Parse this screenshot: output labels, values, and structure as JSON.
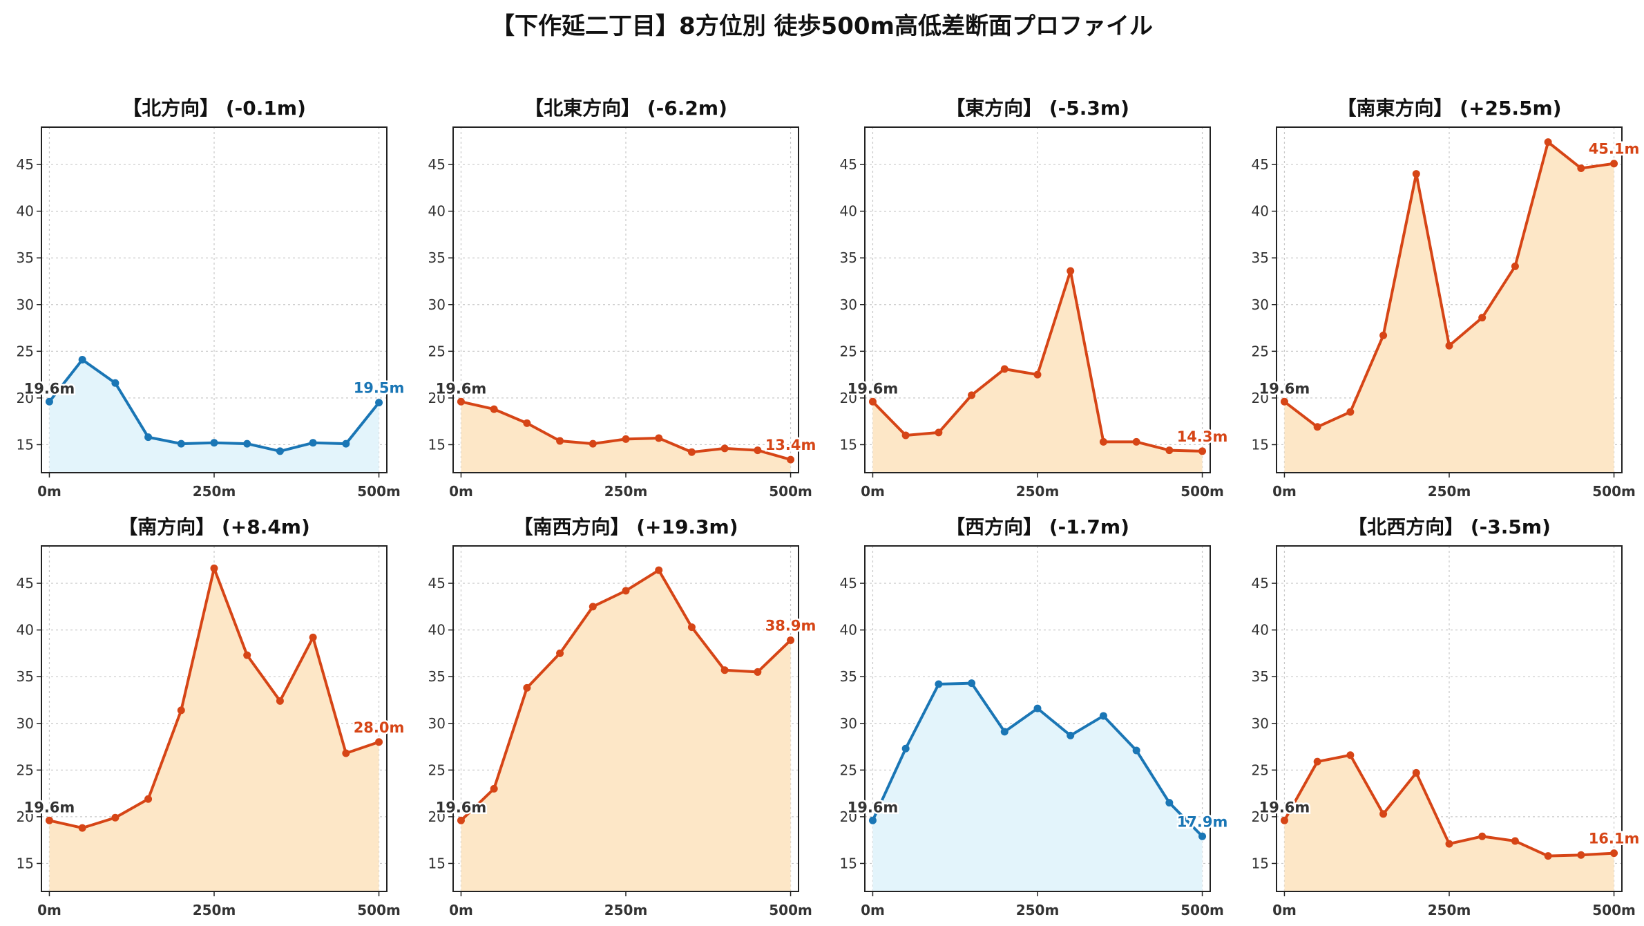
{
  "title": "【下作延二丁目】8方位別 徒歩500m高低差断面プロファイル",
  "colors": {
    "down": "#1a76b5",
    "down_fill": "#e3f4fb",
    "up": "#d64516",
    "up_fill": "#fde7c7",
    "grid": "#c8c8c8",
    "frame": "#222222"
  },
  "chart_data": [
    {
      "type": "area",
      "title": "【北方向】 (-0.1m)",
      "trend": "down",
      "x": [
        0,
        50,
        100,
        150,
        200,
        250,
        300,
        350,
        400,
        450,
        500
      ],
      "y": [
        19.6,
        24.1,
        21.6,
        15.8,
        15.1,
        15.2,
        15.1,
        14.3,
        15.2,
        15.1,
        19.5
      ],
      "start_label": "19.6m",
      "end_label": "19.5m",
      "xticks": [
        0,
        250,
        500
      ],
      "xtick_labels": [
        "0m",
        "250m",
        "500m"
      ],
      "yticks": [
        15,
        20,
        25,
        30,
        35,
        40,
        45
      ],
      "ylim": [
        12,
        49
      ],
      "xlim": [
        -12,
        512
      ],
      "grid": true
    },
    {
      "type": "area",
      "title": "【北東方向】 (-6.2m)",
      "trend": "up",
      "x": [
        0,
        50,
        100,
        150,
        200,
        250,
        300,
        350,
        400,
        450,
        500
      ],
      "y": [
        19.6,
        18.8,
        17.3,
        15.4,
        15.1,
        15.6,
        15.7,
        14.2,
        14.6,
        14.4,
        13.4
      ],
      "start_label": "19.6m",
      "end_label": "13.4m",
      "xticks": [
        0,
        250,
        500
      ],
      "xtick_labels": [
        "0m",
        "250m",
        "500m"
      ],
      "yticks": [
        15,
        20,
        25,
        30,
        35,
        40,
        45
      ],
      "ylim": [
        12,
        49
      ],
      "xlim": [
        -12,
        512
      ],
      "grid": true
    },
    {
      "type": "area",
      "title": "【東方向】 (-5.3m)",
      "trend": "up",
      "x": [
        0,
        50,
        100,
        150,
        200,
        250,
        300,
        350,
        400,
        450,
        500
      ],
      "y": [
        19.6,
        16.0,
        16.3,
        20.3,
        23.1,
        22.5,
        33.6,
        15.3,
        15.3,
        14.4,
        14.3
      ],
      "start_label": "19.6m",
      "end_label": "14.3m",
      "xticks": [
        0,
        250,
        500
      ],
      "xtick_labels": [
        "0m",
        "250m",
        "500m"
      ],
      "yticks": [
        15,
        20,
        25,
        30,
        35,
        40,
        45
      ],
      "ylim": [
        12,
        49
      ],
      "xlim": [
        -12,
        512
      ],
      "grid": true
    },
    {
      "type": "area",
      "title": "【南東方向】 (+25.5m)",
      "trend": "up",
      "x": [
        0,
        50,
        100,
        150,
        200,
        250,
        300,
        350,
        400,
        450,
        500
      ],
      "y": [
        19.6,
        16.9,
        18.5,
        26.7,
        44.0,
        25.6,
        28.6,
        34.1,
        47.4,
        44.6,
        45.1
      ],
      "start_label": "19.6m",
      "end_label": "45.1m",
      "xticks": [
        0,
        250,
        500
      ],
      "xtick_labels": [
        "0m",
        "250m",
        "500m"
      ],
      "yticks": [
        15,
        20,
        25,
        30,
        35,
        40,
        45
      ],
      "ylim": [
        12,
        49
      ],
      "xlim": [
        -12,
        512
      ],
      "grid": true
    },
    {
      "type": "area",
      "title": "【南方向】 (+8.4m)",
      "trend": "up",
      "x": [
        0,
        50,
        100,
        150,
        200,
        250,
        300,
        350,
        400,
        450,
        500
      ],
      "y": [
        19.6,
        18.8,
        19.9,
        21.9,
        31.4,
        46.6,
        37.3,
        32.4,
        39.2,
        26.8,
        28.0
      ],
      "start_label": "19.6m",
      "end_label": "28.0m",
      "xticks": [
        0,
        250,
        500
      ],
      "xtick_labels": [
        "0m",
        "250m",
        "500m"
      ],
      "yticks": [
        15,
        20,
        25,
        30,
        35,
        40,
        45
      ],
      "ylim": [
        12,
        49
      ],
      "xlim": [
        -12,
        512
      ],
      "grid": true
    },
    {
      "type": "area",
      "title": "【南西方向】 (+19.3m)",
      "trend": "up",
      "x": [
        0,
        50,
        100,
        150,
        200,
        250,
        300,
        350,
        400,
        450,
        500
      ],
      "y": [
        19.6,
        23.0,
        33.8,
        37.5,
        42.5,
        44.2,
        46.4,
        40.3,
        35.7,
        35.5,
        38.9
      ],
      "start_label": "19.6m",
      "end_label": "38.9m",
      "xticks": [
        0,
        250,
        500
      ],
      "xtick_labels": [
        "0m",
        "250m",
        "500m"
      ],
      "yticks": [
        15,
        20,
        25,
        30,
        35,
        40,
        45
      ],
      "ylim": [
        12,
        49
      ],
      "xlim": [
        -12,
        512
      ],
      "grid": true
    },
    {
      "type": "area",
      "title": "【西方向】 (-1.7m)",
      "trend": "down",
      "x": [
        0,
        50,
        100,
        150,
        200,
        250,
        300,
        350,
        400,
        450,
        500
      ],
      "y": [
        19.6,
        27.3,
        34.2,
        34.3,
        29.1,
        31.6,
        28.7,
        30.8,
        27.1,
        21.5,
        17.9
      ],
      "start_label": "19.6m",
      "end_label": "17.9m",
      "xticks": [
        0,
        250,
        500
      ],
      "xtick_labels": [
        "0m",
        "250m",
        "500m"
      ],
      "yticks": [
        15,
        20,
        25,
        30,
        35,
        40,
        45
      ],
      "ylim": [
        12,
        49
      ],
      "xlim": [
        -12,
        512
      ],
      "grid": true
    },
    {
      "type": "area",
      "title": "【北西方向】 (-3.5m)",
      "trend": "up",
      "x": [
        0,
        50,
        100,
        150,
        200,
        250,
        300,
        350,
        400,
        450,
        500
      ],
      "y": [
        19.6,
        25.9,
        26.6,
        20.3,
        24.7,
        17.1,
        17.9,
        17.4,
        15.8,
        15.9,
        16.1
      ],
      "start_label": "19.6m",
      "end_label": "16.1m",
      "xticks": [
        0,
        250,
        500
      ],
      "xtick_labels": [
        "0m",
        "250m",
        "500m"
      ],
      "yticks": [
        15,
        20,
        25,
        30,
        35,
        40,
        45
      ],
      "ylim": [
        12,
        49
      ],
      "xlim": [
        -12,
        512
      ],
      "grid": true
    }
  ]
}
